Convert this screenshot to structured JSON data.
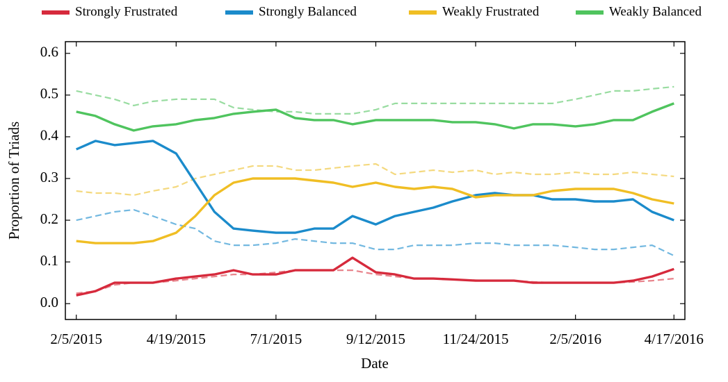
{
  "chart_data": {
    "type": "line",
    "x_label": "Date",
    "y_label": "Proportion of Triads",
    "x": [
      "2/5/2015",
      "2/19/2015",
      "3/5/2015",
      "3/19/2015",
      "4/2/2015",
      "4/19/2015",
      "5/3/2015",
      "5/17/2015",
      "5/31/2015",
      "6/14/2015",
      "7/1/2015",
      "7/15/2015",
      "7/29/2015",
      "8/12/2015",
      "8/26/2015",
      "9/12/2015",
      "9/26/2015",
      "10/10/2015",
      "10/24/2015",
      "11/7/2015",
      "11/24/2015",
      "12/8/2015",
      "12/22/2015",
      "1/5/2016",
      "1/19/2016",
      "2/5/2016",
      "2/19/2016",
      "3/4/2016",
      "3/18/2016",
      "4/1/2016",
      "4/17/2016"
    ],
    "xlim": [
      "1/28/2015",
      "4/25/2016"
    ],
    "xticks": [
      "2/5/2015",
      "4/19/2015",
      "7/1/2015",
      "9/12/2015",
      "11/24/2015",
      "2/5/2016",
      "4/17/2016"
    ],
    "ylim": [
      -0.038,
      0.628
    ],
    "yticks": [
      {
        "value": 0,
        "label": "0.0"
      },
      0.1,
      0.2,
      0.3,
      0.4,
      0.5,
      0.6
    ],
    "series": [
      {
        "color": "#e8858d",
        "dashed": true,
        "values": [
          0.025,
          0.03,
          0.045,
          0.05,
          0.05,
          0.055,
          0.06,
          0.065,
          0.07,
          0.07,
          0.075,
          0.08,
          0.08,
          0.08,
          0.08,
          0.07,
          0.065,
          0.06,
          0.06,
          0.058,
          0.056,
          0.055,
          0.055,
          0.052,
          0.05,
          0.05,
          0.05,
          0.05,
          0.052,
          0.055,
          0.06
        ]
      },
      {
        "color": "#72b8e0",
        "dashed": true,
        "values": [
          0.2,
          0.21,
          0.22,
          0.225,
          0.21,
          0.19,
          0.18,
          0.15,
          0.14,
          0.14,
          0.145,
          0.155,
          0.15,
          0.145,
          0.145,
          0.13,
          0.13,
          0.14,
          0.14,
          0.14,
          0.145,
          0.145,
          0.14,
          0.14,
          0.14,
          0.135,
          0.13,
          0.13,
          0.135,
          0.14,
          0.115
        ]
      },
      {
        "color": "#f4d97f",
        "dashed": true,
        "values": [
          0.27,
          0.265,
          0.265,
          0.26,
          0.27,
          0.28,
          0.3,
          0.31,
          0.32,
          0.33,
          0.33,
          0.32,
          0.32,
          0.325,
          0.33,
          0.335,
          0.31,
          0.315,
          0.32,
          0.315,
          0.32,
          0.31,
          0.315,
          0.31,
          0.31,
          0.315,
          0.31,
          0.31,
          0.315,
          0.31,
          0.305
        ]
      },
      {
        "color": "#98dca0",
        "dashed": true,
        "values": [
          0.51,
          0.5,
          0.49,
          0.475,
          0.485,
          0.49,
          0.49,
          0.49,
          0.47,
          0.465,
          0.46,
          0.46,
          0.455,
          0.455,
          0.455,
          0.465,
          0.48,
          0.48,
          0.48,
          0.48,
          0.48,
          0.48,
          0.48,
          0.48,
          0.48,
          0.49,
          0.5,
          0.51,
          0.51,
          0.515,
          0.52
        ]
      },
      {
        "name": "Strongly Frustrated",
        "color": "#d62a3c",
        "values": [
          0.02,
          0.03,
          0.05,
          0.05,
          0.05,
          0.06,
          0.065,
          0.07,
          0.08,
          0.07,
          0.07,
          0.08,
          0.08,
          0.08,
          0.11,
          0.075,
          0.07,
          0.06,
          0.06,
          0.058,
          0.055,
          0.055,
          0.055,
          0.05,
          0.05,
          0.05,
          0.05,
          0.05,
          0.055,
          0.065,
          0.083
        ]
      },
      {
        "name": "Strongly Balanced",
        "color": "#1b8bcb",
        "values": [
          0.37,
          0.39,
          0.38,
          0.385,
          0.39,
          0.36,
          0.29,
          0.22,
          0.18,
          0.175,
          0.17,
          0.17,
          0.18,
          0.18,
          0.21,
          0.19,
          0.21,
          0.22,
          0.23,
          0.245,
          0.26,
          0.265,
          0.26,
          0.26,
          0.25,
          0.25,
          0.245,
          0.245,
          0.25,
          0.22,
          0.2
        ]
      },
      {
        "name": "Weakly Frustrated",
        "color": "#f0be24",
        "values": [
          0.15,
          0.145,
          0.145,
          0.145,
          0.15,
          0.17,
          0.21,
          0.26,
          0.29,
          0.3,
          0.3,
          0.3,
          0.295,
          0.29,
          0.28,
          0.29,
          0.28,
          0.275,
          0.28,
          0.275,
          0.255,
          0.26,
          0.26,
          0.26,
          0.27,
          0.275,
          0.275,
          0.275,
          0.265,
          0.25,
          0.24
        ]
      },
      {
        "name": "Weakly Balanced",
        "color": "#4fc45e",
        "values": [
          0.46,
          0.45,
          0.43,
          0.415,
          0.425,
          0.43,
          0.44,
          0.445,
          0.455,
          0.46,
          0.465,
          0.445,
          0.44,
          0.44,
          0.43,
          0.44,
          0.44,
          0.44,
          0.44,
          0.435,
          0.435,
          0.43,
          0.42,
          0.43,
          0.43,
          0.425,
          0.43,
          0.44,
          0.44,
          0.46,
          0.48
        ]
      }
    ]
  }
}
